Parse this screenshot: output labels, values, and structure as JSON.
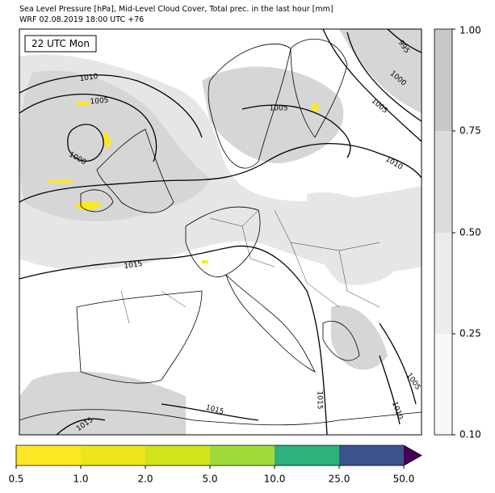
{
  "header": {
    "title_line1": "Sea Level Pressure [hPa], Mid-Level Cloud Cover, Total prec. in the last hour [mm]",
    "title_line2": "WRF 02.08.2019 18:00 UTC +76"
  },
  "map": {
    "time_label": "22 UTC Mon",
    "isobar_labels": [
      "1010",
      "1005",
      "1000",
      "995",
      "1000",
      "1005",
      "1010",
      "1005",
      "1015",
      "1015",
      "1015",
      "1005",
      "1010",
      "1015"
    ]
  },
  "colorbar_cloud": {
    "ticks": [
      "1.00",
      "0.75",
      "0.50",
      "0.25",
      "0.10"
    ]
  },
  "colorbar_precip": {
    "ticks": [
      "0.5",
      "1.0",
      "2.0",
      "5.0",
      "10.0",
      "25.0",
      "50.0"
    ]
  }
}
